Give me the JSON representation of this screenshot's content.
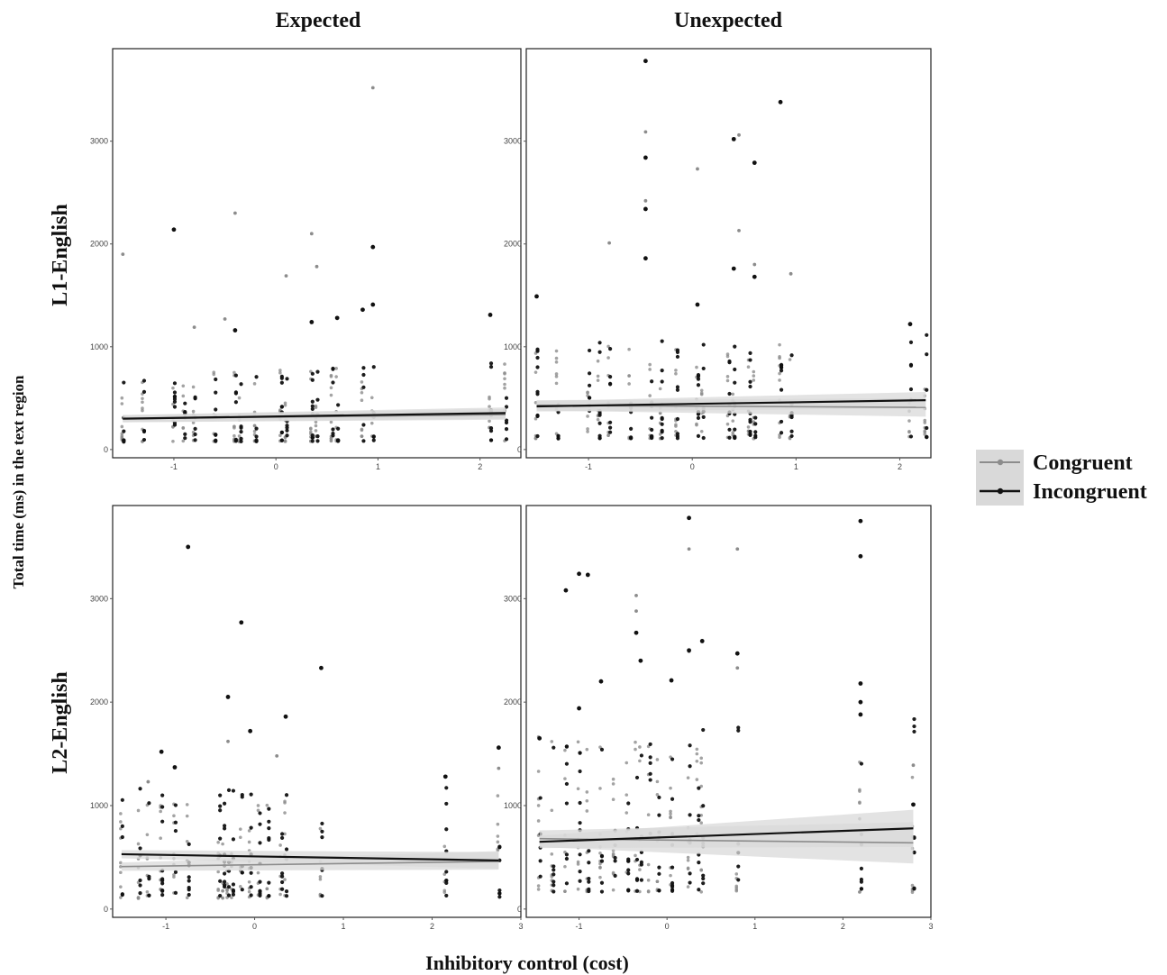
{
  "figure": {
    "y_axis_title": "Total time (ms) in the text region",
    "x_axis_title": "Inhibitory control (cost)",
    "columns": [
      "Expected",
      "Unexpected"
    ],
    "rows": [
      "L1-English",
      "L2-English"
    ],
    "legend": {
      "items": [
        {
          "label": "Congruent",
          "color": "#8c8c8c"
        },
        {
          "label": "Incongruent",
          "color": "#111111"
        }
      ],
      "band_color": "#d9d9d9"
    }
  },
  "chart_data": [
    {
      "type": "scatter",
      "panel": "L1-English / Expected",
      "xlim": [
        -1.6,
        2.4
      ],
      "ylim": [
        -80,
        3900
      ],
      "xticks": [
        -1,
        0,
        1,
        2
      ],
      "yticks": [
        0,
        1000,
        2000,
        3000
      ],
      "xticklabels": [
        "-1",
        "0",
        "1",
        "2"
      ],
      "yticklabels": [
        "0",
        "1000",
        "2000",
        "3000"
      ],
      "x_levels": [
        -1.5,
        -1.3,
        -1.0,
        -0.9,
        -0.8,
        -0.6,
        -0.4,
        -0.35,
        -0.2,
        0.05,
        0.1,
        0.35,
        0.4,
        0.55,
        0.6,
        0.85,
        0.95,
        2.1,
        2.25
      ],
      "series": [
        {
          "name": "Congruent",
          "fit": {
            "x": [
              -1.5,
              2.25
            ],
            "y": [
              300,
              340
            ],
            "ci_low": [
              265,
              290
            ],
            "ci_high": [
              335,
              395
            ]
          },
          "outliers": [
            [
              -1.5,
              1900
            ],
            [
              -0.4,
              2300
            ],
            [
              0.35,
              2100
            ],
            [
              0.4,
              1780
            ],
            [
              0.1,
              1690
            ],
            [
              0.95,
              3520
            ],
            [
              -0.8,
              1190
            ],
            [
              -0.5,
              1270
            ]
          ]
        },
        {
          "name": "Incongruent",
          "fit": {
            "x": [
              -1.5,
              2.25
            ],
            "y": [
              300,
              355
            ],
            "ci_low": [
              265,
              300
            ],
            "ci_high": [
              335,
              410
            ]
          },
          "outliers": [
            [
              -1.0,
              2140
            ],
            [
              0.95,
              1970
            ],
            [
              -0.4,
              1160
            ],
            [
              0.85,
              1360
            ],
            [
              0.95,
              1410
            ],
            [
              2.1,
              1310
            ],
            [
              0.6,
              1280
            ],
            [
              0.35,
              1240
            ]
          ]
        }
      ]
    },
    {
      "type": "scatter",
      "panel": "L1-English / Unexpected",
      "xlim": [
        -1.6,
        2.3
      ],
      "ylim": [
        -80,
        3900
      ],
      "xticks": [
        -1,
        0,
        1,
        2
      ],
      "yticks": [
        0,
        1000,
        2000,
        3000
      ],
      "xticklabels": [
        "-1",
        "0",
        "1",
        "2"
      ],
      "yticklabels": [
        "0",
        "1000",
        "2000",
        "3000"
      ],
      "x_levels": [
        -1.5,
        -1.3,
        -1.0,
        -0.9,
        -0.8,
        -0.6,
        -0.4,
        -0.3,
        -0.15,
        0.05,
        0.1,
        0.35,
        0.4,
        0.55,
        0.6,
        0.85,
        0.95,
        2.1,
        2.25
      ],
      "series": [
        {
          "name": "Congruent",
          "fit": {
            "x": [
              -1.5,
              2.25
            ],
            "y": [
              430,
              410
            ],
            "ci_low": [
              380,
              320
            ],
            "ci_high": [
              480,
              500
            ]
          },
          "outliers": [
            [
              -0.45,
              3090
            ],
            [
              0.45,
              3060
            ],
            [
              0.05,
              2730
            ],
            [
              -0.45,
              2420
            ],
            [
              0.45,
              2130
            ],
            [
              -0.8,
              2010
            ],
            [
              0.95,
              1710
            ],
            [
              0.6,
              1800
            ]
          ]
        },
        {
          "name": "Incongruent",
          "fit": {
            "x": [
              -1.5,
              2.25
            ],
            "y": [
              420,
              480
            ],
            "ci_low": [
              370,
              400
            ],
            "ci_high": [
              470,
              560
            ]
          },
          "outliers": [
            [
              -0.45,
              3780
            ],
            [
              0.85,
              3380
            ],
            [
              0.4,
              3020
            ],
            [
              0.6,
              2790
            ],
            [
              -0.45,
              2840
            ],
            [
              -0.45,
              2340
            ],
            [
              -0.45,
              1860
            ],
            [
              0.4,
              1760
            ],
            [
              0.6,
              1680
            ],
            [
              -1.5,
              1490
            ],
            [
              2.1,
              1220
            ],
            [
              0.05,
              1410
            ]
          ]
        }
      ]
    },
    {
      "type": "scatter",
      "panel": "L2-English / Expected",
      "xlim": [
        -1.6,
        3.0
      ],
      "ylim": [
        -80,
        3900
      ],
      "xticks": [
        -1,
        0,
        1,
        2,
        3
      ],
      "yticks": [
        0,
        1000,
        2000,
        3000
      ],
      "xticklabels": [
        "-1",
        "0",
        "1",
        "2",
        "3"
      ],
      "yticklabels": [
        "0",
        "1000",
        "2000",
        "3000"
      ],
      "x_levels": [
        -1.5,
        -1.3,
        -1.2,
        -1.05,
        -0.9,
        -0.75,
        -0.4,
        -0.35,
        -0.3,
        -0.25,
        -0.15,
        -0.05,
        0.05,
        0.15,
        0.3,
        0.35,
        0.75,
        2.15,
        2.75
      ],
      "series": [
        {
          "name": "Congruent",
          "fit": {
            "x": [
              -1.5,
              2.75
            ],
            "y": [
              410,
              460
            ],
            "ci_low": [
              370,
              380
            ],
            "ci_high": [
              450,
              560
            ]
          },
          "outliers": [
            [
              -1.2,
              1230
            ],
            [
              0.25,
              1480
            ],
            [
              -0.3,
              1620
            ],
            [
              2.75,
              1360
            ]
          ]
        },
        {
          "name": "Incongruent",
          "fit": {
            "x": [
              -1.5,
              2.75
            ],
            "y": [
              530,
              470
            ],
            "ci_low": [
              490,
              390
            ],
            "ci_high": [
              570,
              550
            ]
          },
          "outliers": [
            [
              -0.75,
              3500
            ],
            [
              -0.15,
              2770
            ],
            [
              0.75,
              2330
            ],
            [
              -0.3,
              2050
            ],
            [
              0.35,
              1860
            ],
            [
              -1.05,
              1520
            ],
            [
              -0.9,
              1370
            ],
            [
              2.75,
              1560
            ],
            [
              -0.05,
              1720
            ],
            [
              2.15,
              1280
            ]
          ]
        }
      ]
    },
    {
      "type": "scatter",
      "panel": "L2-English / Unexpected",
      "xlim": [
        -1.6,
        3.0
      ],
      "ylim": [
        -80,
        3900
      ],
      "xticks": [
        -1,
        0,
        1,
        2,
        3
      ],
      "yticks": [
        0,
        1000,
        2000,
        3000
      ],
      "xticklabels": [
        "-1",
        "0",
        "1",
        "2",
        "3"
      ],
      "yticklabels": [
        "0",
        "1000",
        "2000",
        "3000"
      ],
      "x_levels": [
        -1.45,
        -1.3,
        -1.15,
        -1.0,
        -0.9,
        -0.75,
        -0.6,
        -0.45,
        -0.35,
        -0.3,
        -0.2,
        -0.1,
        0.05,
        0.25,
        0.35,
        0.4,
        0.8,
        2.2,
        2.8
      ],
      "series": [
        {
          "name": "Congruent",
          "fit": {
            "x": [
              -1.45,
              2.8
            ],
            "y": [
              680,
              640
            ],
            "ci_low": [
              600,
              440
            ],
            "ci_high": [
              760,
              840
            ]
          },
          "outliers": [
            [
              0.25,
              3480
            ],
            [
              0.8,
              3480
            ],
            [
              -0.35,
              3030
            ],
            [
              -0.35,
              2880
            ],
            [
              0.25,
              2490
            ],
            [
              0.8,
              2330
            ],
            [
              2.8,
              1390
            ]
          ]
        },
        {
          "name": "Incongruent",
          "fit": {
            "x": [
              -1.45,
              2.8
            ],
            "y": [
              650,
              780
            ],
            "ci_low": [
              590,
              600
            ],
            "ci_high": [
              710,
              960
            ]
          },
          "outliers": [
            [
              0.25,
              3780
            ],
            [
              2.2,
              3750
            ],
            [
              2.2,
              3410
            ],
            [
              -1.0,
              3240
            ],
            [
              -0.9,
              3230
            ],
            [
              -1.15,
              3080
            ],
            [
              -0.35,
              2670
            ],
            [
              0.4,
              2590
            ],
            [
              0.25,
              2500
            ],
            [
              0.8,
              2470
            ],
            [
              -0.3,
              2400
            ],
            [
              -0.75,
              2200
            ],
            [
              0.05,
              2210
            ],
            [
              2.2,
              2180
            ],
            [
              2.2,
              2000
            ],
            [
              2.2,
              1880
            ],
            [
              -1.45,
              1650
            ],
            [
              -1.0,
              1940
            ],
            [
              2.8,
              1010
            ]
          ]
        }
      ]
    }
  ]
}
